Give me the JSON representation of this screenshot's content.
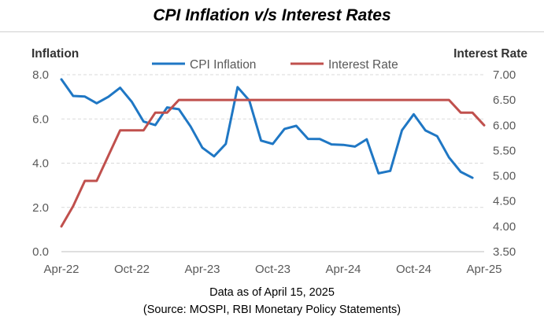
{
  "title": "CPI Inflation v/s Interest Rates",
  "footer": {
    "note": "Data as of April 15, 2025",
    "source": "(Source: MOSPI, RBI Monetary Policy Statements)"
  },
  "colors": {
    "cpi": "#1f77c4",
    "rate": "#c0504d",
    "grid": "#d9d9d9",
    "axis_text": "#595959",
    "axis_title": "#333333"
  },
  "chart_data": {
    "type": "line",
    "title": "CPI Inflation v/s Interest Rates",
    "xlabel": "",
    "ylabel_left": "Inflation",
    "ylabel_right": "Interest Rate",
    "x_ticks": [
      "Apr-22",
      "Oct-22",
      "Apr-23",
      "Oct-23",
      "Apr-24",
      "Oct-24",
      "Apr-25"
    ],
    "ylim_left": [
      0,
      8
    ],
    "yticks_left": [
      "0.0",
      "2.0",
      "4.0",
      "6.0",
      "8.0"
    ],
    "ylim_right": [
      3.5,
      7.0
    ],
    "yticks_right": [
      "3.50",
      "4.00",
      "4.50",
      "5.00",
      "5.50",
      "6.00",
      "6.50",
      "7.00"
    ],
    "legend": {
      "position": "top",
      "entries": [
        "CPI Inflation",
        "Interest Rate"
      ]
    },
    "grid": true,
    "series": [
      {
        "name": "CPI Inflation",
        "axis": "left",
        "x": [
          "2022-04",
          "2022-05",
          "2022-06",
          "2022-07",
          "2022-08",
          "2022-09",
          "2022-10",
          "2022-11",
          "2022-12",
          "2023-01",
          "2023-02",
          "2023-03",
          "2023-04",
          "2023-05",
          "2023-06",
          "2023-07",
          "2023-08",
          "2023-09",
          "2023-10",
          "2023-11",
          "2023-12",
          "2024-01",
          "2024-02",
          "2024-03",
          "2024-04",
          "2024-05",
          "2024-06",
          "2024-07",
          "2024-08",
          "2024-09",
          "2024-10",
          "2024-11",
          "2024-12",
          "2025-01",
          "2025-02",
          "2025-03"
        ],
        "values": [
          7.79,
          7.04,
          7.01,
          6.71,
          7.0,
          7.41,
          6.77,
          5.88,
          5.72,
          6.52,
          6.44,
          5.66,
          4.7,
          4.31,
          4.87,
          7.44,
          6.83,
          5.02,
          4.87,
          5.55,
          5.69,
          5.1,
          5.09,
          4.85,
          4.83,
          4.75,
          5.08,
          3.54,
          3.65,
          5.49,
          6.21,
          5.48,
          5.22,
          4.26,
          3.61,
          3.34
        ]
      },
      {
        "name": "Interest Rate",
        "axis": "right",
        "x": [
          "2022-04",
          "2022-05",
          "2022-06",
          "2022-07",
          "2022-08",
          "2022-09",
          "2022-10",
          "2022-11",
          "2022-12",
          "2023-01",
          "2023-02",
          "2023-03",
          "2023-04",
          "2023-05",
          "2023-06",
          "2023-07",
          "2023-08",
          "2023-09",
          "2023-10",
          "2023-11",
          "2023-12",
          "2024-01",
          "2024-02",
          "2024-03",
          "2024-04",
          "2024-05",
          "2024-06",
          "2024-07",
          "2024-08",
          "2024-09",
          "2024-10",
          "2024-11",
          "2024-12",
          "2025-01",
          "2025-02",
          "2025-03",
          "2025-04"
        ],
        "values": [
          4.0,
          4.4,
          4.9,
          4.9,
          5.4,
          5.9,
          5.9,
          5.9,
          6.25,
          6.25,
          6.5,
          6.5,
          6.5,
          6.5,
          6.5,
          6.5,
          6.5,
          6.5,
          6.5,
          6.5,
          6.5,
          6.5,
          6.5,
          6.5,
          6.5,
          6.5,
          6.5,
          6.5,
          6.5,
          6.5,
          6.5,
          6.5,
          6.5,
          6.5,
          6.25,
          6.25,
          6.0
        ]
      }
    ]
  }
}
